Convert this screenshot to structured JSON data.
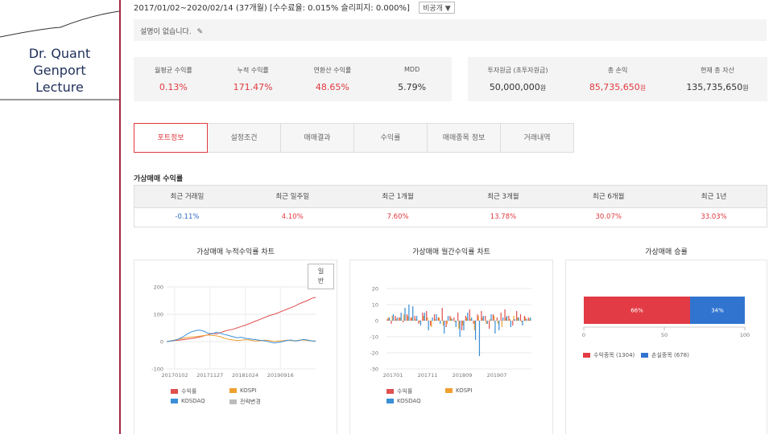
{
  "slide": {
    "lecture_lines": [
      "Dr. Quant",
      "Genport",
      "Lecture"
    ]
  },
  "header": {
    "summary": "2017/01/02~2020/02/14 (37개월) [수수료율: 0.015% 슬리피지: 0.000%]",
    "visibility_select": "비공개"
  },
  "description": {
    "text": "설명이 없습니다."
  },
  "stats_left": [
    {
      "label": "월평균 수익률",
      "value": "0.13%",
      "color": "red"
    },
    {
      "label": "누적 수익률",
      "value": "171.47%",
      "color": "red"
    },
    {
      "label": "연환산 수익률",
      "value": "48.65%",
      "color": "red"
    },
    {
      "label": "MDD",
      "value": "5.79%",
      "color": "black"
    }
  ],
  "stats_right": [
    {
      "label": "투자원금 (초투자원금)",
      "value": "50,000,000",
      "unit": "원",
      "color": "black"
    },
    {
      "label": "총 손익",
      "value": "85,735,650",
      "unit": "원",
      "color": "red"
    },
    {
      "label": "현재 총 자산",
      "value": "135,735,650",
      "unit": "원",
      "color": "black"
    }
  ],
  "tabs": [
    "포트정보",
    "설정조건",
    "매매결과",
    "수익률",
    "매매종목 정보",
    "거래내역"
  ],
  "returns": {
    "title": "가상매매 수익률",
    "headers": [
      "최근 거래일",
      "최근 일주일",
      "최근 1개월",
      "최근 3개월",
      "최근 6개월",
      "최근 1년"
    ],
    "values": [
      "-0.11%",
      "4.10%",
      "7.60%",
      "13.78%",
      "30.07%",
      "33.03%"
    ]
  },
  "colors": {
    "accent": "#e0383e",
    "blue": "#2d6bc5",
    "orange": "#f0a030",
    "sky": "#3a8fd6",
    "gray": "#bbbbbb"
  },
  "chart_data": [
    {
      "type": "line",
      "title": "가상매매 누적수익률 차트",
      "button_label": [
        "일",
        "반"
      ],
      "x_ticks": [
        "20170102",
        "20171127",
        "20181024",
        "20190916"
      ],
      "y_ticks": [
        200,
        100,
        0,
        -100
      ],
      "ylim": [
        -100,
        200
      ],
      "series": [
        {
          "name": "수익률",
          "color": "#e05050",
          "values": [
            0,
            2,
            4,
            5,
            7,
            9,
            11,
            14,
            17,
            21,
            25,
            30,
            28,
            33,
            38,
            42,
            45,
            50,
            55,
            60,
            66,
            72,
            78,
            84,
            90,
            96,
            100,
            106,
            112,
            118,
            124,
            130,
            138,
            144,
            150,
            158,
            162
          ]
        },
        {
          "name": "KOSPI",
          "color": "#f0a030",
          "values": [
            0,
            3,
            6,
            9,
            12,
            15,
            17,
            18,
            20,
            22,
            24,
            23,
            21,
            18,
            12,
            8,
            6,
            4,
            5,
            7,
            6,
            3,
            2,
            4,
            5,
            3,
            1,
            2,
            3,
            5,
            4,
            3,
            5,
            6,
            4,
            3,
            2
          ]
        },
        {
          "name": "KOSDAQ",
          "color": "#3a8fd6",
          "values": [
            0,
            2,
            5,
            10,
            18,
            28,
            36,
            40,
            42,
            38,
            30,
            28,
            34,
            30,
            26,
            22,
            18,
            14,
            16,
            12,
            10,
            8,
            6,
            4,
            2,
            -2,
            -5,
            -3,
            0,
            4,
            6,
            2,
            4,
            8,
            6,
            3,
            1
          ]
        },
        {
          "name": "전략변경",
          "color": "#bbbbbb",
          "values": []
        }
      ]
    },
    {
      "type": "bar",
      "title": "가상매매 월간수익률 차트",
      "x_ticks": [
        "201701",
        "201711",
        "201809",
        "201907"
      ],
      "y_ticks": [
        20,
        10,
        0,
        -10,
        -20,
        -30
      ],
      "ylim": [
        -30,
        20
      ],
      "series": [
        {
          "name": "수익률",
          "color": "#e05050",
          "values": [
            1,
            -2,
            3,
            2,
            -1,
            4,
            2,
            3,
            -2,
            5,
            6,
            -3,
            4,
            2,
            8,
            -4,
            3,
            2,
            5,
            -6,
            3,
            7,
            -2,
            4,
            6,
            3,
            -5,
            4,
            2,
            5,
            7,
            3,
            -3,
            6,
            4,
            3,
            2
          ]
        },
        {
          "name": "KOSPI",
          "color": "#f0a030",
          "values": [
            2,
            3,
            1,
            2,
            4,
            3,
            2,
            1,
            -1,
            3,
            2,
            -4,
            1,
            2,
            -3,
            -2,
            2,
            -1,
            -5,
            -3,
            2,
            1,
            -6,
            3,
            2,
            -2,
            1,
            3,
            -2,
            -4,
            2,
            1,
            3,
            2,
            -1,
            2,
            1
          ]
        },
        {
          "name": "KOSDAQ",
          "color": "#3a8fd6",
          "values": [
            2,
            4,
            2,
            5,
            8,
            10,
            9,
            3,
            -3,
            5,
            -6,
            2,
            4,
            -2,
            -8,
            3,
            1,
            -4,
            -10,
            -6,
            5,
            2,
            -12,
            -22,
            3,
            -2,
            4,
            -8,
            -6,
            2,
            3,
            -4,
            1,
            2,
            -3,
            1,
            2
          ]
        }
      ]
    },
    {
      "type": "bar",
      "orientation": "horizontal-stacked",
      "title": "가상매매 승률",
      "x_ticks": [
        0,
        50,
        100
      ],
      "xlim": [
        0,
        100
      ],
      "segments": [
        {
          "name": "수익종목",
          "count": 1304,
          "pct": 66,
          "label": "66%",
          "legend": "수익종목 (1304)",
          "color": "#e23b45"
        },
        {
          "name": "손실종목",
          "count": 678,
          "pct": 34,
          "label": "34%",
          "legend": "손실종목 (678)",
          "color": "#3174d0"
        }
      ]
    }
  ]
}
